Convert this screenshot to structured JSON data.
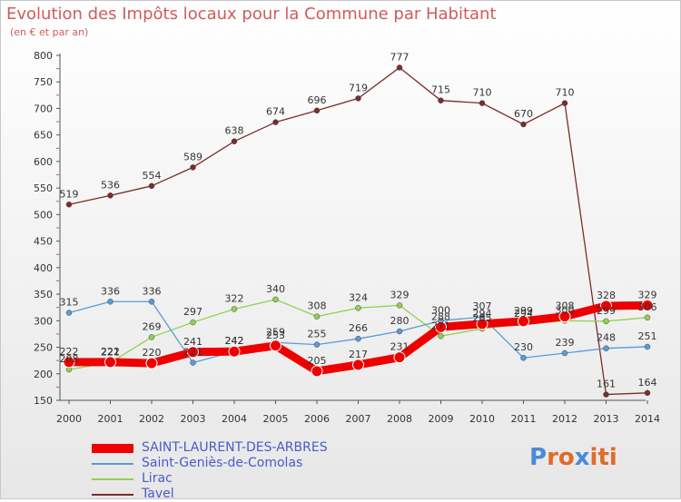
{
  "title": "Evolution des Impôts locaux pour la Commune par Habitant",
  "subtitle": "(en € et par an)",
  "logo": [
    "P",
    "r",
    "o",
    "x",
    "i",
    "t",
    "i"
  ],
  "colors": {
    "title": "#d35a5a",
    "legend_text": "#4a5acb",
    "logo": [
      "#4a8ad8",
      "#e06b2a",
      "#e06b2a",
      "#4a8ad8",
      "#e06b2a",
      "#e06b2a",
      "#e06b2a"
    ]
  },
  "chart_data": {
    "type": "line",
    "title": "Evolution des Impôts locaux pour la Commune par Habitant",
    "subtitle": "(en € et par an)",
    "xlabel": "",
    "ylabel": "",
    "x": [
      "2000",
      "2001",
      "2002",
      "2003",
      "2004",
      "2005",
      "2006",
      "2007",
      "2008",
      "2009",
      "2010",
      "2011",
      "2012",
      "2013",
      "2014"
    ],
    "ylim": [
      150,
      800
    ],
    "yticks": [
      150,
      200,
      250,
      300,
      350,
      400,
      450,
      500,
      550,
      600,
      650,
      700,
      750,
      800
    ],
    "grid": false,
    "legend": "bottom-left",
    "series": [
      {
        "name": "SAINT-LAURENT-DES-ARBRES",
        "color": "#ee0000",
        "values": [
          222,
          222,
          220,
          241,
          242,
          253,
          205,
          217,
          231,
          288,
          294,
          299,
          308,
          328,
          329
        ]
      },
      {
        "name": "Saint-Geniès-de-Comolas",
        "color": "#5b9bd5",
        "values": [
          315,
          336,
          336,
          221,
          242,
          259,
          255,
          266,
          280,
          300,
          307,
          230,
          239,
          248,
          251
        ]
      },
      {
        "name": "Lirac",
        "color": "#92d050",
        "values": [
          208,
          221,
          269,
          297,
          322,
          340,
          308,
          324,
          329,
          271,
          285,
          294,
          300,
          299,
          306
        ]
      },
      {
        "name": "Tavel",
        "color": "#7b2c2c",
        "values": [
          519,
          536,
          554,
          589,
          638,
          674,
          696,
          719,
          777,
          715,
          710,
          670,
          710,
          161,
          164
        ]
      }
    ]
  }
}
